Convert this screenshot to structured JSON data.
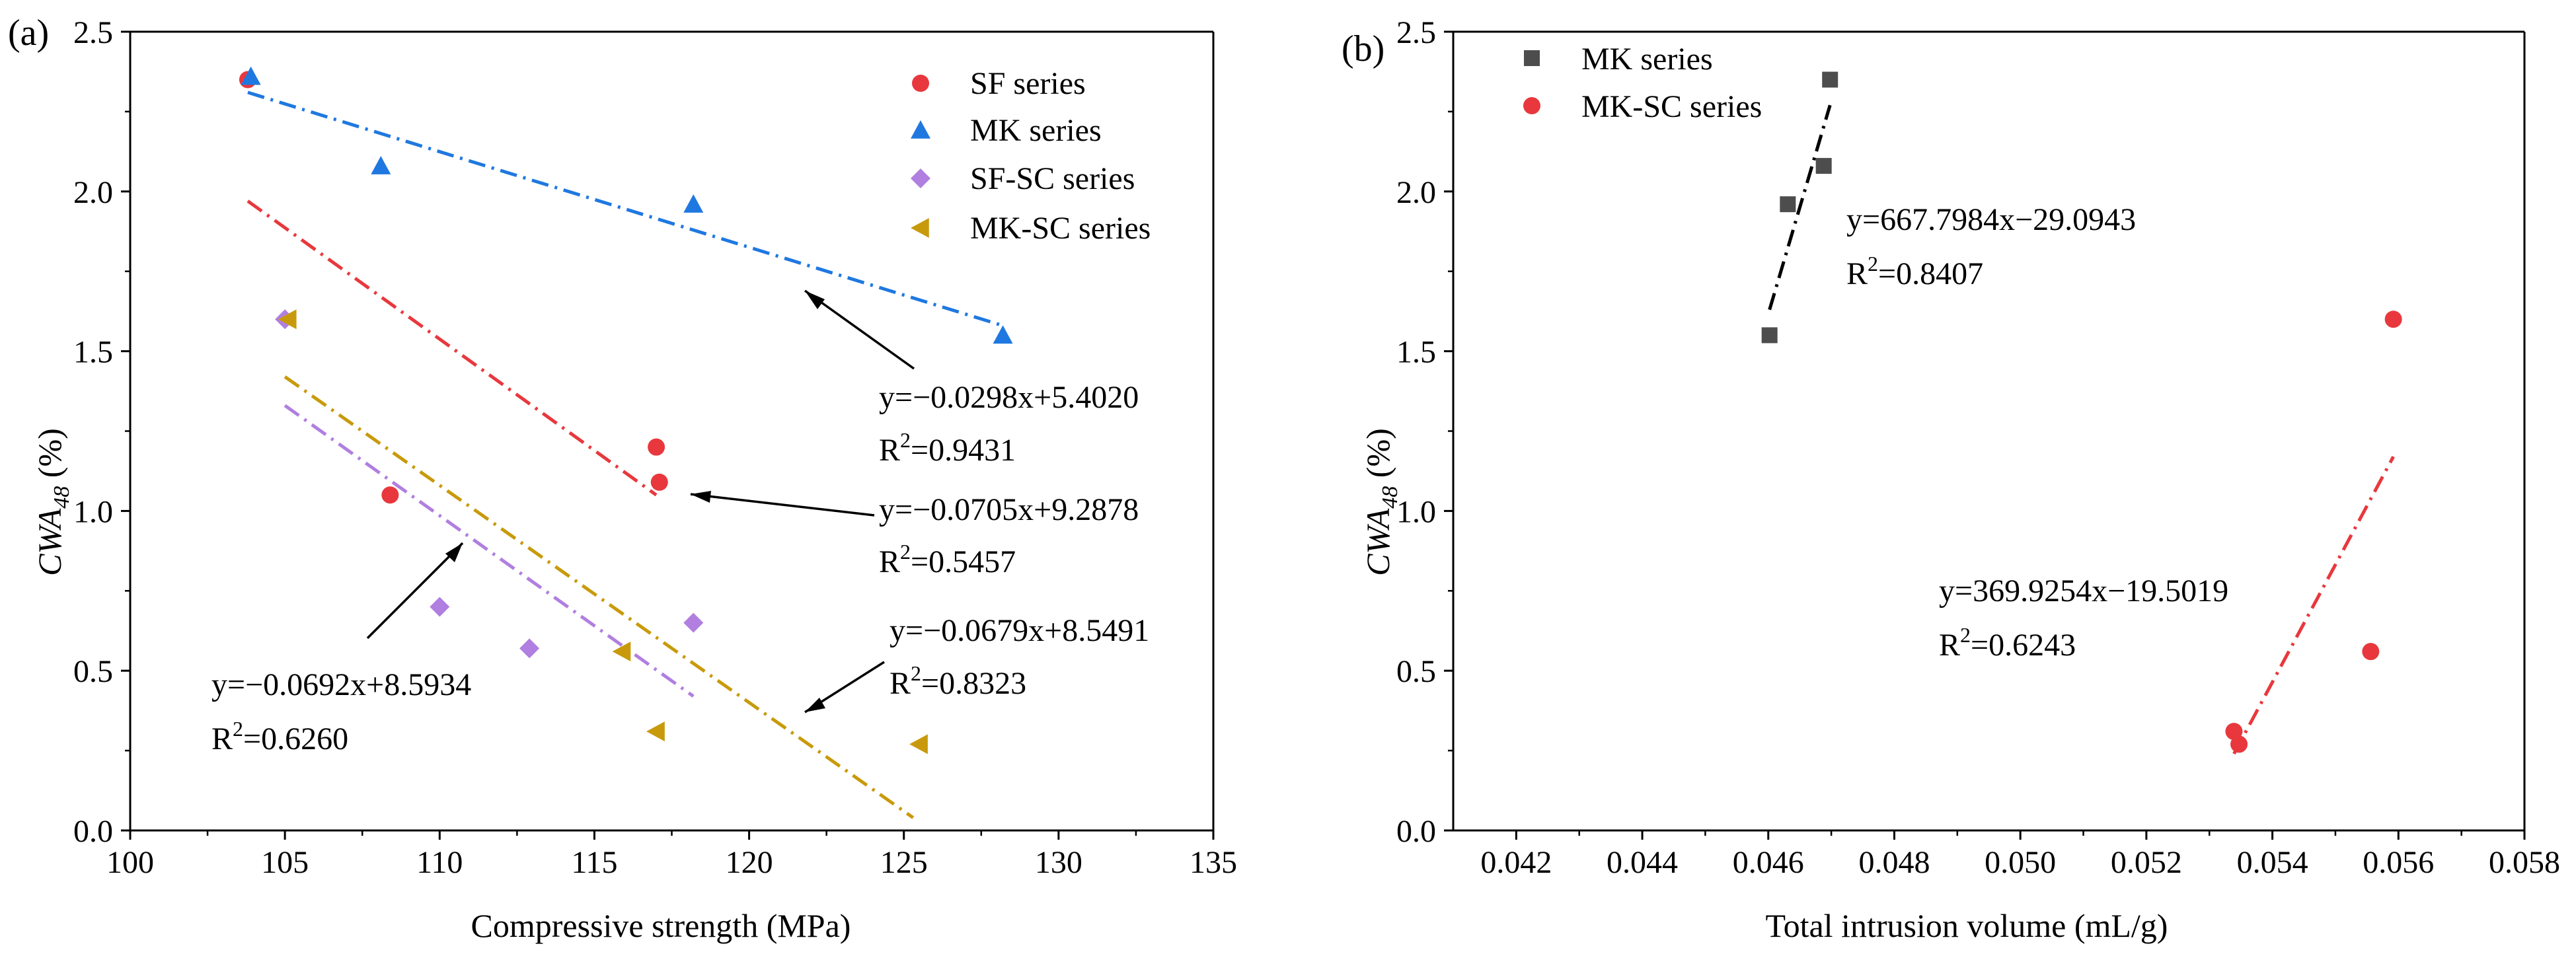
{
  "chart_data": [
    {
      "panel": "(a)",
      "type": "scatter",
      "xlabel": "Compressive strength (MPa)",
      "ylabel": "CWA48 (%)",
      "ylabel_main": "CWA",
      "ylabel_sub": "48",
      "ylabel_unit": " (%)",
      "xlim": [
        100,
        135
      ],
      "ylim": [
        0.0,
        2.5
      ],
      "xticks": [
        "100",
        "105",
        "110",
        "115",
        "120",
        "125",
        "130",
        "135"
      ],
      "yticks": [
        "0.0",
        "0.5",
        "1.0",
        "1.5",
        "2.0",
        "2.5"
      ],
      "legend_position": "top-right",
      "series": [
        {
          "name": "SF series",
          "marker": "circle",
          "color": "#E8383D",
          "points": [
            [
              103.8,
              2.35
            ],
            [
              108.4,
              1.05
            ],
            [
              117.0,
              1.2
            ],
            [
              117.1,
              1.09
            ]
          ],
          "fit": {
            "x": [
              103.8,
              117.0
            ],
            "y": [
              1.97,
              1.05
            ],
            "label": "y=−0.0705x+9.2878",
            "r2_label": "R",
            "r2_value": "=0.5457"
          }
        },
        {
          "name": "MK series",
          "marker": "triangle",
          "color": "#1F78E0",
          "points": [
            [
              103.9,
              2.36
            ],
            [
              108.1,
              2.08
            ],
            [
              118.2,
              1.96
            ],
            [
              128.2,
              1.55
            ]
          ],
          "fit": {
            "x": [
              103.8,
              128.2
            ],
            "y": [
              2.31,
              1.58
            ],
            "label": "y=−0.0298x+5.4020",
            "r2_label": "R",
            "r2_value": "=0.9431"
          }
        },
        {
          "name": "SF-SC series",
          "marker": "diamond",
          "color": "#B07FE0",
          "points": [
            [
              105.0,
              1.6
            ],
            [
              110.0,
              0.7
            ],
            [
              112.9,
              0.57
            ],
            [
              118.2,
              0.65
            ]
          ],
          "fit": {
            "x": [
              105.0,
              118.2
            ],
            "y": [
              1.33,
              0.42
            ],
            "label": "y=−0.0692x+8.5934",
            "r2_label": "R",
            "r2_value": "=0.6260"
          }
        },
        {
          "name": "MK-SC series",
          "marker": "triangle-left",
          "color": "#C89A0B",
          "points": [
            [
              105.1,
              1.6
            ],
            [
              115.9,
              0.56
            ],
            [
              117.0,
              0.31
            ],
            [
              125.5,
              0.27
            ]
          ],
          "fit": {
            "x": [
              105.0,
              125.3
            ],
            "y": [
              1.42,
              0.04
            ],
            "label": "y=−0.0679x+8.5491",
            "r2_label": "R",
            "r2_value": "=0.8323"
          }
        }
      ]
    },
    {
      "panel": "(b)",
      "type": "scatter",
      "xlabel": "Total intrusion volume (mL/g)",
      "ylabel": "CWA48 (%)",
      "ylabel_main": "CWA",
      "ylabel_sub": "48",
      "ylabel_unit": " (%)",
      "xlim": [
        0.041,
        0.058
      ],
      "ylim": [
        0.0,
        2.5
      ],
      "xticks": [
        "0.042",
        "0.044",
        "0.046",
        "0.048",
        "0.050",
        "0.052",
        "0.054",
        "0.056",
        "0.058"
      ],
      "yticks": [
        "0.0",
        "0.5",
        "1.0",
        "1.5",
        "2.0",
        "2.5"
      ],
      "legend_position": "top-left",
      "series": [
        {
          "name": "MK series",
          "marker": "square",
          "color": "#4D4D4D",
          "points": [
            [
              0.04602,
              1.55
            ],
            [
              0.04631,
              1.96
            ],
            [
              0.04688,
              2.08
            ],
            [
              0.04698,
              2.35
            ]
          ],
          "fit": {
            "x": [
              0.04602,
              0.04698
            ],
            "y": [
              1.63,
              2.27
            ],
            "label": "y=667.7984x−29.0943",
            "r2_label": "R",
            "r2_value": "=0.8407"
          }
        },
        {
          "name": "MK-SC series",
          "marker": "circle",
          "color": "#E8383D",
          "points": [
            [
              0.05339,
              0.31
            ],
            [
              0.05347,
              0.27
            ],
            [
              0.05556,
              0.56
            ],
            [
              0.05592,
              1.6
            ]
          ],
          "fit": {
            "x": [
              0.05339,
              0.05592
            ],
            "y": [
              0.24,
              1.17
            ],
            "label": "y=369.9254x−19.5019",
            "r2_label": "R",
            "r2_value": "=0.6243"
          }
        }
      ]
    }
  ]
}
